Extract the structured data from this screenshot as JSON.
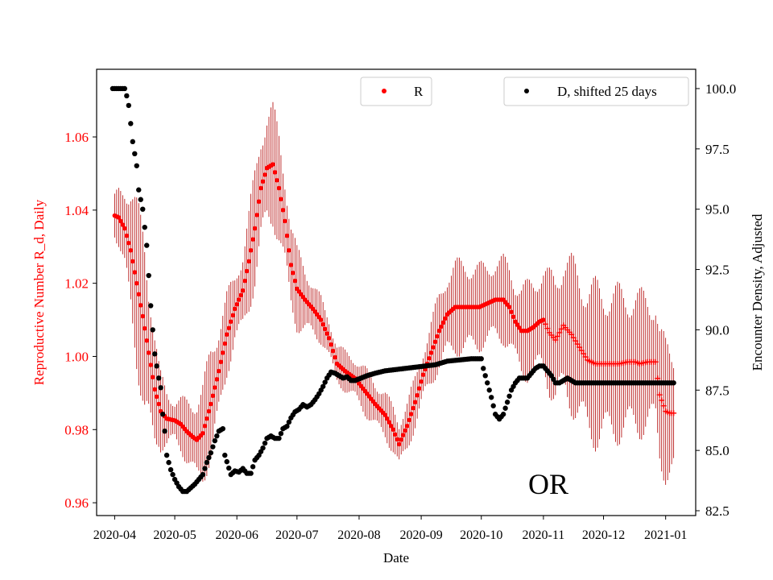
{
  "chart_data": {
    "type": "scatter",
    "region_label": "OR",
    "xlabel": "Date",
    "ylabel_left": "Reproductive Number R_d, Daily",
    "ylabel_right": "Encounter Density, Adjusted",
    "x_start": "2020-04-01",
    "xlim": [
      -9,
      290
    ],
    "ylim_left": [
      0.9565,
      1.0785
    ],
    "ylim_right": [
      82.3,
      100.8
    ],
    "x_ticks": [
      {
        "label": "2020-04",
        "day": 0
      },
      {
        "label": "2020-05",
        "day": 30
      },
      {
        "label": "2020-06",
        "day": 61
      },
      {
        "label": "2020-07",
        "day": 91
      },
      {
        "label": "2020-08",
        "day": 122
      },
      {
        "label": "2020-09",
        "day": 153
      },
      {
        "label": "2020-10",
        "day": 183
      },
      {
        "label": "2020-11",
        "day": 214
      },
      {
        "label": "2020-12",
        "day": 244
      },
      {
        "label": "2021-01",
        "day": 275
      }
    ],
    "y_ticks_left": [
      "0.96",
      "0.98",
      "1.00",
      "1.02",
      "1.04",
      "1.06"
    ],
    "y_ticks_right": [
      "82.5",
      "85.0",
      "87.5",
      "90.0",
      "92.5",
      "95.0",
      "97.5",
      "100.0"
    ],
    "colors": {
      "r_series": "#ff0000",
      "r_errorbar": "#b00000",
      "d_series": "#000000",
      "left_axis": "#ff0000"
    },
    "series": [
      {
        "name": "R",
        "axis": "left",
        "color": "#ff0000",
        "marker_switch_day": 214,
        "knots_mean": [
          [
            0,
            1.0385
          ],
          [
            2,
            1.038
          ],
          [
            5,
            1.035
          ],
          [
            8,
            1.029
          ],
          [
            11,
            1.02
          ],
          [
            14,
            1.011
          ],
          [
            17,
            1.001
          ],
          [
            20,
            0.991
          ],
          [
            23,
            0.985
          ],
          [
            26,
            0.983
          ],
          [
            30,
            0.9825
          ],
          [
            33,
            0.9815
          ],
          [
            36,
            0.9795
          ],
          [
            39,
            0.978
          ],
          [
            41,
            0.9772
          ],
          [
            44,
            0.979
          ],
          [
            48,
            0.987
          ],
          [
            52,
            0.996
          ],
          [
            56,
            1.006
          ],
          [
            60,
            1.013
          ],
          [
            64,
            1.018
          ],
          [
            67,
            1.026
          ],
          [
            70,
            1.035
          ],
          [
            73,
            1.046
          ],
          [
            76,
            1.0515
          ],
          [
            79,
            1.0525
          ],
          [
            82,
            1.046
          ],
          [
            85,
            1.037
          ],
          [
            88,
            1.025
          ],
          [
            91,
            1.0185
          ],
          [
            95,
            1.0155
          ],
          [
            99,
            1.013
          ],
          [
            103,
            1.01
          ],
          [
            107,
            1.005
          ],
          [
            111,
            0.998
          ],
          [
            115,
            0.996
          ],
          [
            120,
            0.994
          ],
          [
            125,
            0.9905
          ],
          [
            130,
            0.987
          ],
          [
            135,
            0.984
          ],
          [
            139,
            0.98
          ],
          [
            142,
            0.976
          ],
          [
            146,
            0.981
          ],
          [
            150,
            0.9875
          ],
          [
            154,
            0.995
          ],
          [
            158,
            1.001
          ],
          [
            162,
            1.007
          ],
          [
            166,
            1.0115
          ],
          [
            170,
            1.0135
          ],
          [
            176,
            1.0135
          ],
          [
            182,
            1.0135
          ],
          [
            186,
            1.0145
          ],
          [
            190,
            1.0155
          ],
          [
            194,
            1.0155
          ],
          [
            197,
            1.0135
          ],
          [
            200,
            1.0095
          ],
          [
            203,
            1.007
          ],
          [
            206,
            1.007
          ],
          [
            209,
            1.008
          ],
          [
            212,
            1.0095
          ],
          [
            214,
            1.01
          ],
          [
            217,
            1.0065
          ],
          [
            220,
            1.0045
          ],
          [
            224,
            1.0085
          ],
          [
            228,
            1.006
          ],
          [
            232,
            1.0025
          ],
          [
            236,
            0.999
          ],
          [
            240,
            0.998
          ],
          [
            244,
            0.998
          ],
          [
            248,
            0.998
          ],
          [
            252,
            0.998
          ],
          [
            256,
            0.9985
          ],
          [
            260,
            0.9985
          ],
          [
            262,
            0.998
          ],
          [
            266,
            0.9985
          ],
          [
            270,
            0.9985
          ],
          [
            272,
            0.9895
          ],
          [
            275,
            0.985
          ],
          [
            277,
            0.9845
          ],
          [
            279,
            0.9845
          ]
        ],
        "knots_err": [
          [
            0,
            0.006
          ],
          [
            10,
            0.022
          ],
          [
            15,
            0.03
          ],
          [
            22,
            0.012
          ],
          [
            30,
            0.006
          ],
          [
            40,
            0.012
          ],
          [
            48,
            0.017
          ],
          [
            60,
            0.01
          ],
          [
            70,
            0.017
          ],
          [
            78,
            0.018
          ],
          [
            85,
            0.015
          ],
          [
            95,
            0.01
          ],
          [
            105,
            0.006
          ],
          [
            115,
            0.006
          ],
          [
            125,
            0.007
          ],
          [
            140,
            0.007
          ],
          [
            155,
            0.008
          ],
          [
            165,
            0.013
          ],
          [
            175,
            0.014
          ],
          [
            185,
            0.012
          ],
          [
            200,
            0.013
          ],
          [
            214,
            0.016
          ],
          [
            224,
            0.022
          ],
          [
            240,
            0.024
          ],
          [
            262,
            0.021
          ],
          [
            270,
            0.02
          ],
          [
            279,
            0.021
          ]
        ]
      },
      {
        "name": "D, shifted 25 days",
        "axis": "right",
        "color": "#000000",
        "cutoff_day": 279,
        "knots": [
          [
            -1,
            100
          ],
          [
            5,
            100
          ],
          [
            6,
            99.7
          ],
          [
            7,
            99.3
          ],
          [
            9,
            97.8
          ],
          [
            11,
            96.8
          ],
          [
            12,
            95.8
          ],
          [
            14,
            95
          ],
          [
            16,
            93.5
          ],
          [
            18,
            91
          ],
          [
            20,
            89
          ],
          [
            22,
            88
          ],
          [
            23,
            87.6
          ],
          [
            24,
            86.5
          ],
          [
            25,
            85.8
          ],
          [
            26,
            84.8
          ],
          [
            28,
            84.2
          ],
          [
            30,
            83.8
          ],
          [
            32,
            83.5
          ],
          [
            34,
            83.3
          ],
          [
            36,
            83.3
          ],
          [
            38,
            83.45
          ],
          [
            40,
            83.6
          ],
          [
            42,
            83.8
          ],
          [
            44,
            84
          ],
          [
            46,
            84.5
          ],
          [
            48,
            84.9
          ],
          [
            50,
            85.4
          ],
          [
            52,
            85.8
          ],
          [
            54,
            85.9
          ],
          [
            55,
            84.8
          ],
          [
            58,
            84
          ],
          [
            60,
            84.15
          ],
          [
            62,
            84.1
          ],
          [
            64,
            84.25
          ],
          [
            66,
            84.05
          ],
          [
            68,
            84.05
          ],
          [
            70,
            84.6
          ],
          [
            72,
            84.8
          ],
          [
            74,
            85.1
          ],
          [
            76,
            85.5
          ],
          [
            78,
            85.6
          ],
          [
            80,
            85.5
          ],
          [
            82,
            85.5
          ],
          [
            84,
            85.9
          ],
          [
            86,
            86
          ],
          [
            88,
            86.35
          ],
          [
            90,
            86.6
          ],
          [
            92,
            86.7
          ],
          [
            94,
            86.9
          ],
          [
            96,
            86.8
          ],
          [
            98,
            86.9
          ],
          [
            100,
            87.1
          ],
          [
            102,
            87.35
          ],
          [
            104,
            87.65
          ],
          [
            106,
            88
          ],
          [
            108,
            88.25
          ],
          [
            110,
            88.2
          ],
          [
            112,
            88.1
          ],
          [
            114,
            88
          ],
          [
            116,
            88.05
          ],
          [
            118,
            87.9
          ],
          [
            120,
            87.9
          ],
          [
            123,
            88
          ],
          [
            126,
            88.1
          ],
          [
            130,
            88.2
          ],
          [
            135,
            88.3
          ],
          [
            140,
            88.35
          ],
          [
            145,
            88.4
          ],
          [
            150,
            88.45
          ],
          [
            155,
            88.5
          ],
          [
            160,
            88.55
          ],
          [
            166,
            88.7
          ],
          [
            172,
            88.75
          ],
          [
            178,
            88.8
          ],
          [
            182,
            88.8
          ],
          [
            183,
            88.8
          ],
          [
            184,
            88.4
          ],
          [
            186,
            87.8
          ],
          [
            188,
            87.2
          ],
          [
            190,
            86.5
          ],
          [
            192,
            86.3
          ],
          [
            194,
            86.5
          ],
          [
            196,
            87
          ],
          [
            198,
            87.5
          ],
          [
            200,
            87.8
          ],
          [
            202,
            88
          ],
          [
            204,
            88
          ],
          [
            206,
            88
          ],
          [
            208,
            88.2
          ],
          [
            210,
            88.4
          ],
          [
            212,
            88.5
          ],
          [
            214,
            88.5
          ],
          [
            216,
            88.3
          ],
          [
            218,
            88.1
          ],
          [
            220,
            87.8
          ],
          [
            222,
            87.8
          ],
          [
            224,
            87.9
          ],
          [
            226,
            88
          ],
          [
            228,
            87.9
          ],
          [
            230,
            87.8
          ],
          [
            279,
            87.8
          ]
        ]
      }
    ],
    "legend": {
      "r_label": "R",
      "d_label": "D, shifted 25 days"
    }
  }
}
